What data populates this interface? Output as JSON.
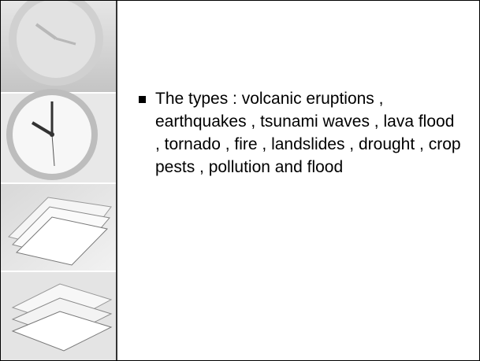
{
  "slide": {
    "bullets": [
      "The types : volcanic eruptions , earthquakes , tsunami waves , lava flood , tornado , fire , landslides , drought , crop pests , pollution and flood"
    ]
  }
}
